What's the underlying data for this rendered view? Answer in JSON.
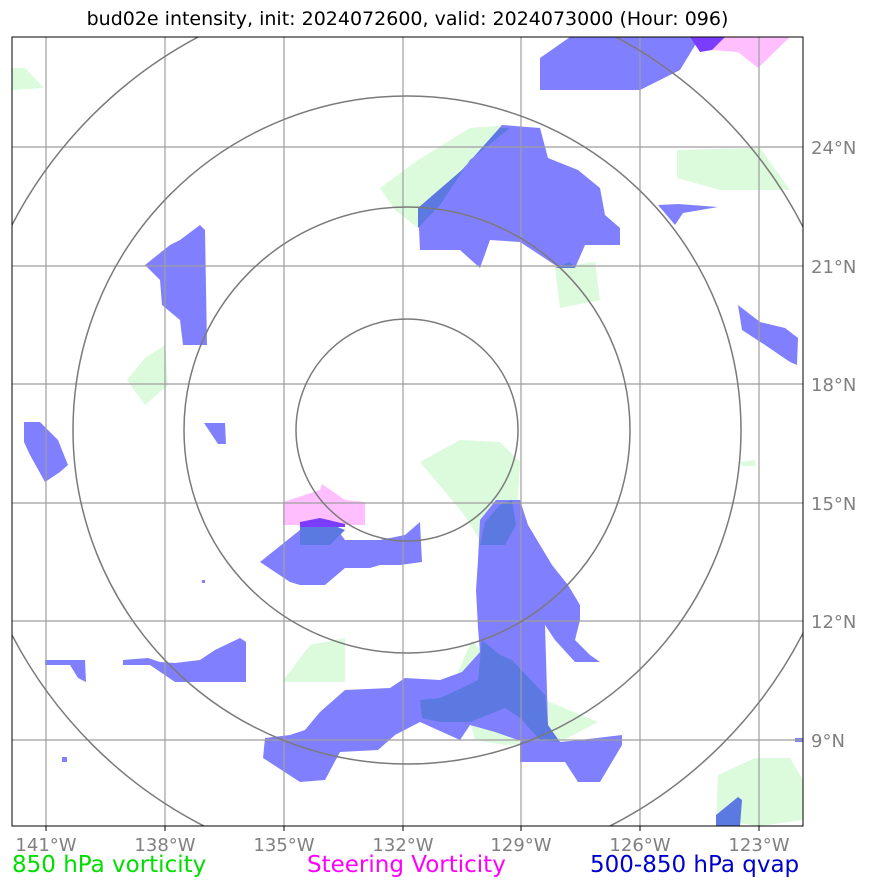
{
  "title": "bud02e intensity, init: 2024072600, valid: 2024073000 (Hour: 096)",
  "lon_labels": [
    "141°W",
    "138°W",
    "135°W",
    "132°W",
    "129°W",
    "126°W",
    "123°W"
  ],
  "lat_labels": [
    "24°N",
    "21°N",
    "18°N",
    "15°N",
    "12°N",
    "9°N"
  ],
  "legend": {
    "vorticity": "850 hPa vorticity",
    "steering": "Steering Vorticity",
    "qvap": "500-850 hPa qvap"
  },
  "colors": {
    "vorticity": "#00dd00",
    "steering": "#ff00ff",
    "qvap": "#0000cc",
    "vort_fill": "#dcfadc",
    "steer_fill": "#ffbfff",
    "qvap_fill": "#8080ff",
    "overlap_fill": "#5b79e0",
    "grid": "#9e9e9e",
    "rings": "#7a7a7a",
    "tick_text": "#808080"
  },
  "map": {
    "lon_range": [
      -141.9,
      -121.9
    ],
    "lat_range": [
      7.2,
      27.2
    ],
    "center": [
      -132.0,
      17.0
    ],
    "ring_radii_deg": [
      2.8,
      5.6,
      8.4,
      11.2
    ]
  }
}
